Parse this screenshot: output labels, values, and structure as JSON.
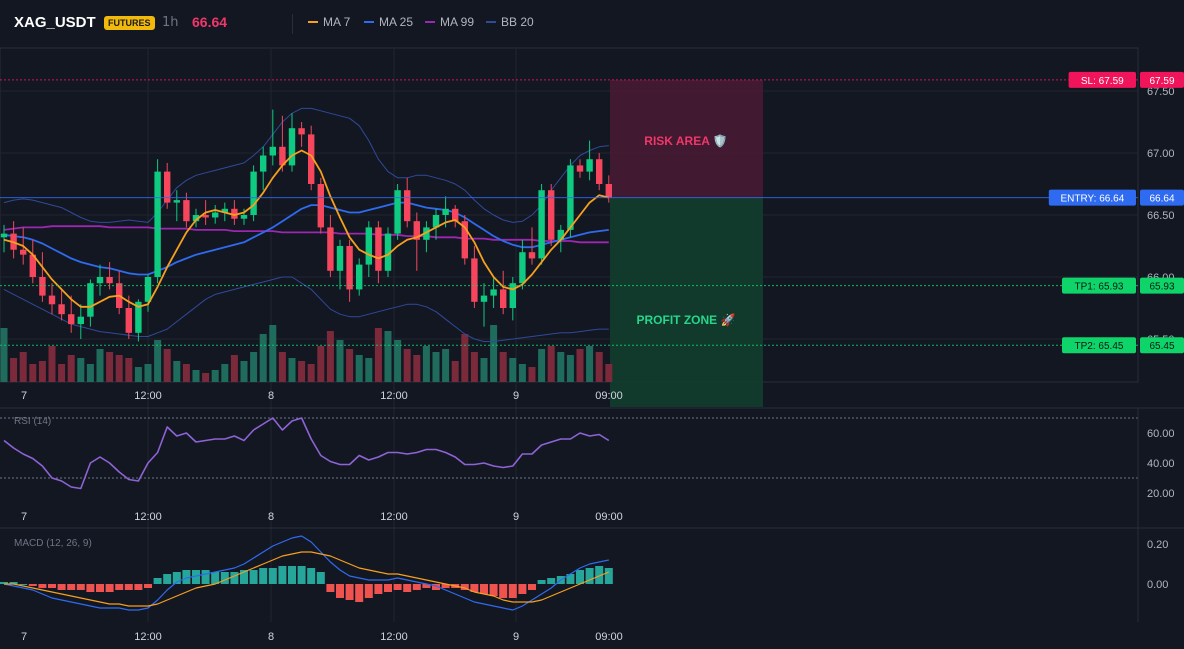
{
  "header": {
    "symbol": "XAG_USDT",
    "badge": "FUTURES",
    "timeframe": "1h",
    "price": "66.64",
    "legend": [
      {
        "name": "MA 7",
        "color": "#f7a01d"
      },
      {
        "name": "MA 25",
        "color": "#2f6bf0"
      },
      {
        "name": "MA 99",
        "color": "#9c27b0"
      },
      {
        "name": "BB 20",
        "color": "#2f4a99"
      }
    ]
  },
  "levels": {
    "sl": {
      "label": "SL: 67.59",
      "value": 67.59,
      "price_label": "67.59",
      "color": "#f0145a"
    },
    "entry": {
      "label": "ENTRY: 66.64",
      "value": 66.64,
      "price_label": "66.64",
      "color": "#2f6bf0"
    },
    "tp1": {
      "label": "TP1: 65.93",
      "value": 65.93,
      "price_label": "65.93",
      "color": "#0fd46a"
    },
    "tp2": {
      "label": "TP2: 65.45",
      "value": 65.45,
      "price_label": "65.45",
      "color": "#0fd46a"
    }
  },
  "zones": {
    "risk": "RISK AREA 🛡️",
    "profit": "PROFIT ZONE 🚀"
  },
  "x_ticks": [
    "7",
    "12:00",
    "8",
    "12:00",
    "9",
    "09:00"
  ],
  "chart_data": [
    {
      "type": "candlestick",
      "title": "",
      "y_ticks": [
        "67.50",
        "67.00",
        "66.50",
        "66.00",
        "65.50"
      ],
      "y_tick_values": [
        67.5,
        67.0,
        66.5,
        66.0,
        65.5
      ],
      "candles": [
        {
          "o": 66.32,
          "h": 66.42,
          "l": 66.2,
          "c": 66.35
        },
        {
          "o": 66.35,
          "h": 66.45,
          "l": 66.15,
          "c": 66.22
        },
        {
          "o": 66.22,
          "h": 66.4,
          "l": 66.1,
          "c": 66.18
        },
        {
          "o": 66.18,
          "h": 66.3,
          "l": 65.95,
          "c": 66.0
        },
        {
          "o": 66.0,
          "h": 66.2,
          "l": 65.8,
          "c": 65.85
        },
        {
          "o": 65.85,
          "h": 65.95,
          "l": 65.7,
          "c": 65.78
        },
        {
          "o": 65.78,
          "h": 65.9,
          "l": 65.65,
          "c": 65.7
        },
        {
          "o": 65.7,
          "h": 65.85,
          "l": 65.55,
          "c": 65.62
        },
        {
          "o": 65.62,
          "h": 65.78,
          "l": 65.5,
          "c": 65.68
        },
        {
          "o": 65.68,
          "h": 65.98,
          "l": 65.6,
          "c": 65.95
        },
        {
          "o": 65.95,
          "h": 66.1,
          "l": 65.85,
          "c": 66.0
        },
        {
          "o": 66.0,
          "h": 66.12,
          "l": 65.9,
          "c": 65.95
        },
        {
          "o": 65.95,
          "h": 66.05,
          "l": 65.7,
          "c": 65.75
        },
        {
          "o": 65.75,
          "h": 65.85,
          "l": 65.5,
          "c": 65.55
        },
        {
          "o": 65.55,
          "h": 65.82,
          "l": 65.48,
          "c": 65.8
        },
        {
          "o": 65.8,
          "h": 66.02,
          "l": 65.72,
          "c": 66.0
        },
        {
          "o": 66.0,
          "h": 66.95,
          "l": 65.95,
          "c": 66.85
        },
        {
          "o": 66.85,
          "h": 66.92,
          "l": 66.55,
          "c": 66.6
        },
        {
          "o": 66.6,
          "h": 66.7,
          "l": 66.45,
          "c": 66.62
        },
        {
          "o": 66.62,
          "h": 66.68,
          "l": 66.4,
          "c": 66.45
        },
        {
          "o": 66.45,
          "h": 66.55,
          "l": 66.4,
          "c": 66.5
        },
        {
          "o": 66.5,
          "h": 66.62,
          "l": 66.42,
          "c": 66.48
        },
        {
          "o": 66.48,
          "h": 66.58,
          "l": 66.43,
          "c": 66.52
        },
        {
          "o": 66.52,
          "h": 66.6,
          "l": 66.45,
          "c": 66.55
        },
        {
          "o": 66.55,
          "h": 66.62,
          "l": 66.42,
          "c": 66.47
        },
        {
          "o": 66.47,
          "h": 66.55,
          "l": 66.42,
          "c": 66.5
        },
        {
          "o": 66.5,
          "h": 66.9,
          "l": 66.45,
          "c": 66.85
        },
        {
          "o": 66.85,
          "h": 67.05,
          "l": 66.7,
          "c": 66.98
        },
        {
          "o": 66.98,
          "h": 67.35,
          "l": 66.9,
          "c": 67.05
        },
        {
          "o": 67.05,
          "h": 67.3,
          "l": 66.85,
          "c": 66.9
        },
        {
          "o": 66.9,
          "h": 67.32,
          "l": 66.85,
          "c": 67.2
        },
        {
          "o": 67.2,
          "h": 67.25,
          "l": 67.05,
          "c": 67.15
        },
        {
          "o": 67.15,
          "h": 67.22,
          "l": 66.7,
          "c": 66.75
        },
        {
          "o": 66.75,
          "h": 66.8,
          "l": 66.35,
          "c": 66.4
        },
        {
          "o": 66.4,
          "h": 66.5,
          "l": 66.0,
          "c": 66.05
        },
        {
          "o": 66.05,
          "h": 66.3,
          "l": 65.9,
          "c": 66.25
        },
        {
          "o": 66.25,
          "h": 66.3,
          "l": 65.8,
          "c": 65.9
        },
        {
          "o": 65.9,
          "h": 66.15,
          "l": 65.85,
          "c": 66.1
        },
        {
          "o": 66.1,
          "h": 66.45,
          "l": 66.0,
          "c": 66.4
        },
        {
          "o": 66.4,
          "h": 66.45,
          "l": 65.95,
          "c": 66.05
        },
        {
          "o": 66.05,
          "h": 66.4,
          "l": 66.0,
          "c": 66.35
        },
        {
          "o": 66.35,
          "h": 66.75,
          "l": 66.3,
          "c": 66.7
        },
        {
          "o": 66.7,
          "h": 66.8,
          "l": 66.4,
          "c": 66.45
        },
        {
          "o": 66.45,
          "h": 66.52,
          "l": 66.05,
          "c": 66.3
        },
        {
          "o": 66.3,
          "h": 66.45,
          "l": 66.2,
          "c": 66.4
        },
        {
          "o": 66.4,
          "h": 66.55,
          "l": 66.3,
          "c": 66.5
        },
        {
          "o": 66.5,
          "h": 66.65,
          "l": 66.4,
          "c": 66.55
        },
        {
          "o": 66.55,
          "h": 66.58,
          "l": 66.4,
          "c": 66.45
        },
        {
          "o": 66.45,
          "h": 66.5,
          "l": 66.1,
          "c": 66.15
        },
        {
          "o": 66.15,
          "h": 66.25,
          "l": 65.75,
          "c": 65.8
        },
        {
          "o": 65.8,
          "h": 65.95,
          "l": 65.6,
          "c": 65.85
        },
        {
          "o": 65.85,
          "h": 66.0,
          "l": 65.75,
          "c": 65.9
        },
        {
          "o": 65.9,
          "h": 66.05,
          "l": 65.7,
          "c": 65.75
        },
        {
          "o": 65.75,
          "h": 66.0,
          "l": 65.65,
          "c": 65.95
        },
        {
          "o": 65.95,
          "h": 66.3,
          "l": 65.9,
          "c": 66.2
        },
        {
          "o": 66.2,
          "h": 66.4,
          "l": 66.1,
          "c": 66.15
        },
        {
          "o": 66.15,
          "h": 66.75,
          "l": 66.1,
          "c": 66.7
        },
        {
          "o": 66.7,
          "h": 66.75,
          "l": 66.25,
          "c": 66.3
        },
        {
          "o": 66.3,
          "h": 66.42,
          "l": 66.2,
          "c": 66.38
        },
        {
          "o": 66.38,
          "h": 66.95,
          "l": 66.32,
          "c": 66.9
        },
        {
          "o": 66.9,
          "h": 66.95,
          "l": 66.8,
          "c": 66.85
        },
        {
          "o": 66.85,
          "h": 67.1,
          "l": 66.78,
          "c": 66.95
        },
        {
          "o": 66.95,
          "h": 67.0,
          "l": 66.7,
          "c": 66.75
        },
        {
          "o": 66.75,
          "h": 66.82,
          "l": 66.6,
          "c": 66.64
        }
      ],
      "ma7": [
        66.3,
        66.28,
        66.25,
        66.18,
        66.08,
        65.98,
        65.9,
        65.82,
        65.76,
        65.76,
        65.8,
        65.84,
        65.85,
        65.8,
        65.76,
        65.78,
        65.92,
        66.08,
        66.22,
        66.36,
        66.46,
        66.52,
        66.54,
        66.52,
        66.5,
        66.52,
        66.58,
        66.68,
        66.8,
        66.9,
        66.98,
        67.02,
        66.98,
        66.85,
        66.65,
        66.48,
        66.32,
        66.22,
        66.18,
        66.15,
        66.18,
        66.25,
        66.3,
        66.32,
        66.36,
        66.4,
        66.44,
        66.46,
        66.4,
        66.28,
        66.12,
        66.0,
        65.92,
        65.9,
        65.94,
        66.02,
        66.12,
        66.22,
        66.3,
        66.4,
        66.5,
        66.6,
        66.66,
        66.64
      ],
      "ma25": [
        66.34,
        66.33,
        66.32,
        66.3,
        66.27,
        66.23,
        66.19,
        66.15,
        66.12,
        66.1,
        66.08,
        66.07,
        66.05,
        66.03,
        66.02,
        66.02,
        66.05,
        66.08,
        66.12,
        66.15,
        66.18,
        66.2,
        66.22,
        66.24,
        66.26,
        66.28,
        66.32,
        66.36,
        66.4,
        66.45,
        66.5,
        66.55,
        66.58,
        66.58,
        66.56,
        66.54,
        66.52,
        66.52,
        66.54,
        66.56,
        66.58,
        66.6,
        66.6,
        66.58,
        66.56,
        66.55,
        66.54,
        66.52,
        66.48,
        66.43,
        66.38,
        66.33,
        66.29,
        66.26,
        66.24,
        66.24,
        66.26,
        66.28,
        66.3,
        66.32,
        66.34,
        66.36,
        66.37,
        66.38
      ],
      "ma99": [
        66.38,
        66.39,
        66.4,
        66.4,
        66.4,
        66.41,
        66.41,
        66.41,
        66.41,
        66.41,
        66.41,
        66.4,
        66.4,
        66.4,
        66.4,
        66.4,
        66.39,
        66.39,
        66.39,
        66.39,
        66.38,
        66.38,
        66.38,
        66.38,
        66.37,
        66.37,
        66.37,
        66.37,
        66.37,
        66.36,
        66.36,
        66.36,
        66.36,
        66.36,
        66.36,
        66.35,
        66.35,
        66.35,
        66.35,
        66.34,
        66.34,
        66.34,
        66.33,
        66.33,
        66.33,
        66.32,
        66.32,
        66.32,
        66.31,
        66.31,
        66.31,
        66.3,
        66.3,
        66.3,
        66.3,
        66.3,
        66.29,
        66.29,
        66.29,
        66.29,
        66.28,
        66.28,
        66.28,
        66.28
      ],
      "bb_upper": [
        66.6,
        66.62,
        66.63,
        66.62,
        66.6,
        66.58,
        66.56,
        66.52,
        66.48,
        66.45,
        66.44,
        66.44,
        66.45,
        66.46,
        66.45,
        66.44,
        66.52,
        66.62,
        66.72,
        66.78,
        66.82,
        66.84,
        66.86,
        66.88,
        66.9,
        66.92,
        66.98,
        67.05,
        67.15,
        67.25,
        67.32,
        67.36,
        67.36,
        67.34,
        67.32,
        67.3,
        67.28,
        67.22,
        67.1,
        66.95,
        66.85,
        66.8,
        66.8,
        66.82,
        66.82,
        66.8,
        66.78,
        66.75,
        66.7,
        66.62,
        66.55,
        66.5,
        66.46,
        66.44,
        66.45,
        66.5,
        66.58,
        66.7,
        66.8,
        66.9,
        66.98,
        67.02,
        67.05,
        67.06
      ],
      "bb_lower": [
        65.9,
        65.86,
        65.82,
        65.78,
        65.74,
        65.7,
        65.66,
        65.62,
        65.6,
        65.58,
        65.56,
        65.55,
        65.54,
        65.53,
        65.52,
        65.52,
        65.55,
        65.58,
        65.64,
        65.7,
        65.76,
        65.82,
        65.86,
        65.88,
        65.9,
        65.92,
        65.94,
        65.96,
        65.98,
        66.0,
        66.0,
        65.95,
        65.9,
        65.82,
        65.74,
        65.7,
        65.68,
        65.68,
        65.7,
        65.72,
        65.74,
        65.76,
        65.78,
        65.78,
        65.76,
        65.72,
        65.66,
        65.6,
        65.54,
        65.5,
        65.48,
        65.48,
        65.49,
        65.5,
        65.51,
        65.52,
        65.53,
        65.54,
        65.55,
        65.55,
        65.56,
        65.57,
        65.58,
        65.58
      ],
      "volume": [
        0.9,
        0.4,
        0.5,
        0.3,
        0.35,
        0.6,
        0.3,
        0.45,
        0.4,
        0.3,
        0.55,
        0.5,
        0.45,
        0.4,
        0.25,
        0.3,
        0.7,
        0.55,
        0.35,
        0.3,
        0.2,
        0.15,
        0.2,
        0.3,
        0.45,
        0.35,
        0.5,
        0.8,
        0.95,
        0.5,
        0.4,
        0.35,
        0.3,
        0.6,
        0.85,
        0.7,
        0.55,
        0.45,
        0.4,
        0.9,
        0.85,
        0.7,
        0.55,
        0.45,
        0.6,
        0.5,
        0.55,
        0.35,
        0.8,
        0.5,
        0.4,
        0.95,
        0.5,
        0.4,
        0.3,
        0.25,
        0.55,
        0.6,
        0.5,
        0.45,
        0.55,
        0.6,
        0.5,
        0.3
      ]
    },
    {
      "type": "line",
      "title": "RSI (14)",
      "y_ticks": [
        "60.00",
        "40.00",
        "20.00"
      ],
      "y_tick_values": [
        60,
        40,
        20
      ],
      "ylim": [
        10,
        80
      ],
      "ref_lines": [
        70,
        30
      ],
      "values": [
        55,
        50,
        46,
        43,
        38,
        30,
        28,
        24,
        23,
        40,
        44,
        40,
        34,
        29,
        28,
        40,
        47,
        64,
        58,
        60,
        54,
        55,
        56,
        56,
        58,
        55,
        62,
        66,
        70,
        62,
        68,
        70,
        56,
        45,
        41,
        39,
        39,
        45,
        42,
        44,
        47,
        47,
        46,
        47,
        49,
        49,
        47,
        44,
        39,
        39,
        40,
        38,
        37,
        38,
        46,
        46,
        52,
        54,
        56,
        56,
        60,
        58,
        59,
        55
      ]
    },
    {
      "type": "bar",
      "title": "MACD (12, 26, 9)",
      "y_ticks": [
        "0.20",
        "0.00"
      ],
      "y_tick_values": [
        0.2,
        0.0
      ],
      "ylim": [
        -0.2,
        0.25
      ],
      "histogram": [
        0.01,
        0.01,
        0.0,
        -0.01,
        -0.02,
        -0.02,
        -0.03,
        -0.03,
        -0.03,
        -0.04,
        -0.04,
        -0.04,
        -0.03,
        -0.03,
        -0.03,
        -0.02,
        0.03,
        0.05,
        0.06,
        0.07,
        0.07,
        0.07,
        0.06,
        0.06,
        0.06,
        0.07,
        0.07,
        0.08,
        0.08,
        0.09,
        0.09,
        0.09,
        0.08,
        0.06,
        -0.04,
        -0.07,
        -0.08,
        -0.09,
        -0.07,
        -0.05,
        -0.04,
        -0.03,
        -0.04,
        -0.03,
        -0.02,
        -0.03,
        -0.02,
        -0.02,
        -0.03,
        -0.04,
        -0.05,
        -0.06,
        -0.07,
        -0.07,
        -0.05,
        -0.03,
        0.02,
        0.03,
        0.04,
        0.05,
        0.07,
        0.08,
        0.09,
        0.08
      ],
      "macd": [
        0.0,
        -0.01,
        -0.02,
        -0.03,
        -0.05,
        -0.07,
        -0.08,
        -0.09,
        -0.1,
        -0.11,
        -0.12,
        -0.12,
        -0.12,
        -0.13,
        -0.13,
        -0.12,
        -0.08,
        -0.03,
        0.01,
        0.03,
        0.04,
        0.05,
        0.06,
        0.07,
        0.08,
        0.1,
        0.13,
        0.16,
        0.19,
        0.21,
        0.23,
        0.24,
        0.21,
        0.16,
        0.11,
        0.07,
        0.04,
        0.03,
        0.02,
        0.02,
        0.02,
        0.03,
        0.02,
        0.01,
        0.0,
        -0.01,
        -0.03,
        -0.05,
        -0.07,
        -0.09,
        -0.1,
        -0.11,
        -0.12,
        -0.13,
        -0.11,
        -0.08,
        -0.05,
        -0.02,
        0.02,
        0.05,
        0.08,
        0.1,
        0.11,
        0.12
      ],
      "signal": [
        0.0,
        0.0,
        -0.01,
        -0.02,
        -0.03,
        -0.04,
        -0.05,
        -0.06,
        -0.07,
        -0.08,
        -0.09,
        -0.1,
        -0.1,
        -0.11,
        -0.11,
        -0.11,
        -0.1,
        -0.08,
        -0.06,
        -0.04,
        -0.02,
        -0.01,
        0.0,
        0.02,
        0.04,
        0.06,
        0.08,
        0.1,
        0.12,
        0.14,
        0.15,
        0.16,
        0.16,
        0.15,
        0.14,
        0.12,
        0.1,
        0.08,
        0.07,
        0.06,
        0.05,
        0.05,
        0.04,
        0.03,
        0.02,
        0.01,
        0.0,
        -0.01,
        -0.02,
        -0.04,
        -0.05,
        -0.06,
        -0.08,
        -0.09,
        -0.09,
        -0.09,
        -0.08,
        -0.06,
        -0.04,
        -0.02,
        0.0,
        0.02,
        0.04,
        0.06
      ]
    }
  ]
}
